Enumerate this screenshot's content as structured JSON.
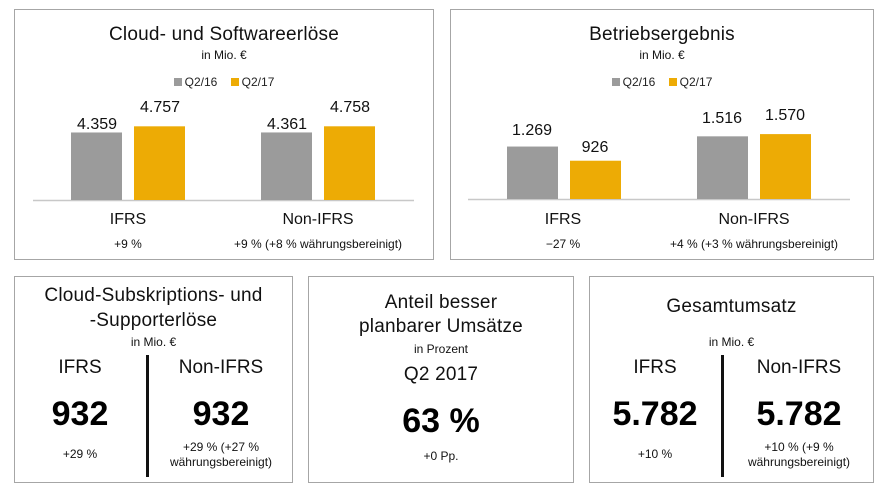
{
  "colors": {
    "q2_16": "#9b9b9b",
    "q2_17": "#edab05",
    "axis": "#c8c8c8"
  },
  "chart_data": [
    {
      "type": "bar",
      "title": "Cloud- und Softwareerlöse",
      "subtitle": "in Mio. €",
      "categories": [
        "IFRS",
        "Non-IFRS"
      ],
      "category_changes": [
        "+9 %",
        "+9 % (+8 % währungsbereinigt)"
      ],
      "series": [
        {
          "name": "Q2/16",
          "values": [
            4359,
            4361
          ],
          "labels": [
            "4.359",
            "4.361"
          ]
        },
        {
          "name": "Q2/17",
          "values": [
            4757,
            4758
          ],
          "labels": [
            "4.757",
            "4.758"
          ]
        }
      ],
      "legend": "top",
      "ylim": [
        0,
        6800
      ],
      "grid": false
    },
    {
      "type": "bar",
      "title": "Betriebsergebnis",
      "subtitle": "in Mio. €",
      "categories": [
        "IFRS",
        "Non-IFRS"
      ],
      "category_changes": [
        "−27 %",
        "+4 % (+3 % währungsbereinigt)"
      ],
      "series": [
        {
          "name": "Q2/16",
          "values": [
            1269,
            1516
          ],
          "labels": [
            "1.269",
            "1.516"
          ]
        },
        {
          "name": "Q2/17",
          "values": [
            926,
            1570
          ],
          "labels": [
            "926",
            "1.570"
          ]
        }
      ],
      "legend": "top",
      "ylim": [
        0,
        2400
      ],
      "grid": false
    }
  ],
  "kpi_cloud": {
    "title_line1": "Cloud-Subskriptions- und",
    "title_line2": "-Supporterlöse",
    "subtitle": "in Mio. €",
    "left": {
      "label": "IFRS",
      "value": "932",
      "change": "+29 %"
    },
    "right": {
      "label": "Non-IFRS",
      "value": "932",
      "change_line1": "+29 % (+27 %",
      "change_line2": "währungsbereinigt)"
    }
  },
  "kpi_share": {
    "title_line1": "Anteil besser",
    "title_line2": "planbarer Umsätze",
    "subtitle": "in Prozent",
    "period": "Q2 2017",
    "value": "63 %",
    "change": "+0 Pp."
  },
  "kpi_total": {
    "title": "Gesamtumsatz",
    "subtitle": "in Mio. €",
    "left": {
      "label": "IFRS",
      "value": "5.782",
      "change": "+10 %"
    },
    "right": {
      "label": "Non-IFRS",
      "value": "5.782",
      "change_line1": "+10 % (+9 %",
      "change_line2": "währungsbereinigt)"
    }
  }
}
